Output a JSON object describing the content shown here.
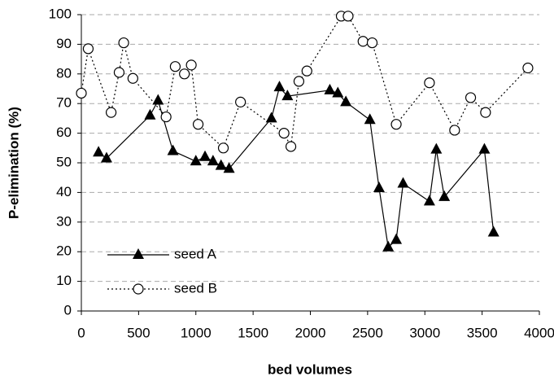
{
  "chart_data": {
    "type": "line",
    "x_label": "bed volumes",
    "y_label": "P-elimination (%)",
    "xlim": [
      0,
      4000
    ],
    "xticks": [
      0,
      500,
      1000,
      1500,
      2000,
      2500,
      3000,
      3500,
      4000
    ],
    "ylim": [
      0,
      100
    ],
    "yticks": [
      0,
      10,
      20,
      30,
      40,
      50,
      60,
      70,
      80,
      90,
      100
    ],
    "grid": true,
    "legend": "lower left",
    "series": [
      {
        "name": "seed A",
        "color": "#000000",
        "marker": "triangle",
        "line_style": "solid",
        "x": [
          150,
          220,
          600,
          670,
          800,
          1000,
          1080,
          1150,
          1220,
          1290,
          1660,
          1730,
          1800,
          2170,
          2240,
          2310,
          2520,
          2600,
          2680,
          2750,
          2810,
          3040,
          3100,
          3170,
          3520,
          3600
        ],
        "values": [
          53.5,
          51.5,
          66,
          71,
          54,
          50.5,
          52,
          50.5,
          49,
          48,
          65,
          75.5,
          72.5,
          74.5,
          73.5,
          70.5,
          64.5,
          41.5,
          21.5,
          24,
          43,
          37,
          54.5,
          38.5,
          54.5,
          26.5
        ]
      },
      {
        "name": "seed B",
        "color": "#000000",
        "marker": "circle",
        "line_style": "dotted",
        "x": [
          0,
          60,
          260,
          330,
          370,
          450,
          740,
          820,
          900,
          960,
          1020,
          1240,
          1390,
          1770,
          1830,
          1900,
          1970,
          2270,
          2330,
          2460,
          2540,
          2750,
          3040,
          3260,
          3400,
          3530,
          3900
        ],
        "values": [
          73.5,
          88.5,
          67,
          80.5,
          90.5,
          78.5,
          65.5,
          82.5,
          80,
          83,
          63,
          55,
          70.5,
          60,
          55.5,
          77.5,
          81,
          99.5,
          99.5,
          91,
          90.5,
          63,
          77,
          61,
          72,
          67,
          82
        ]
      }
    ]
  }
}
